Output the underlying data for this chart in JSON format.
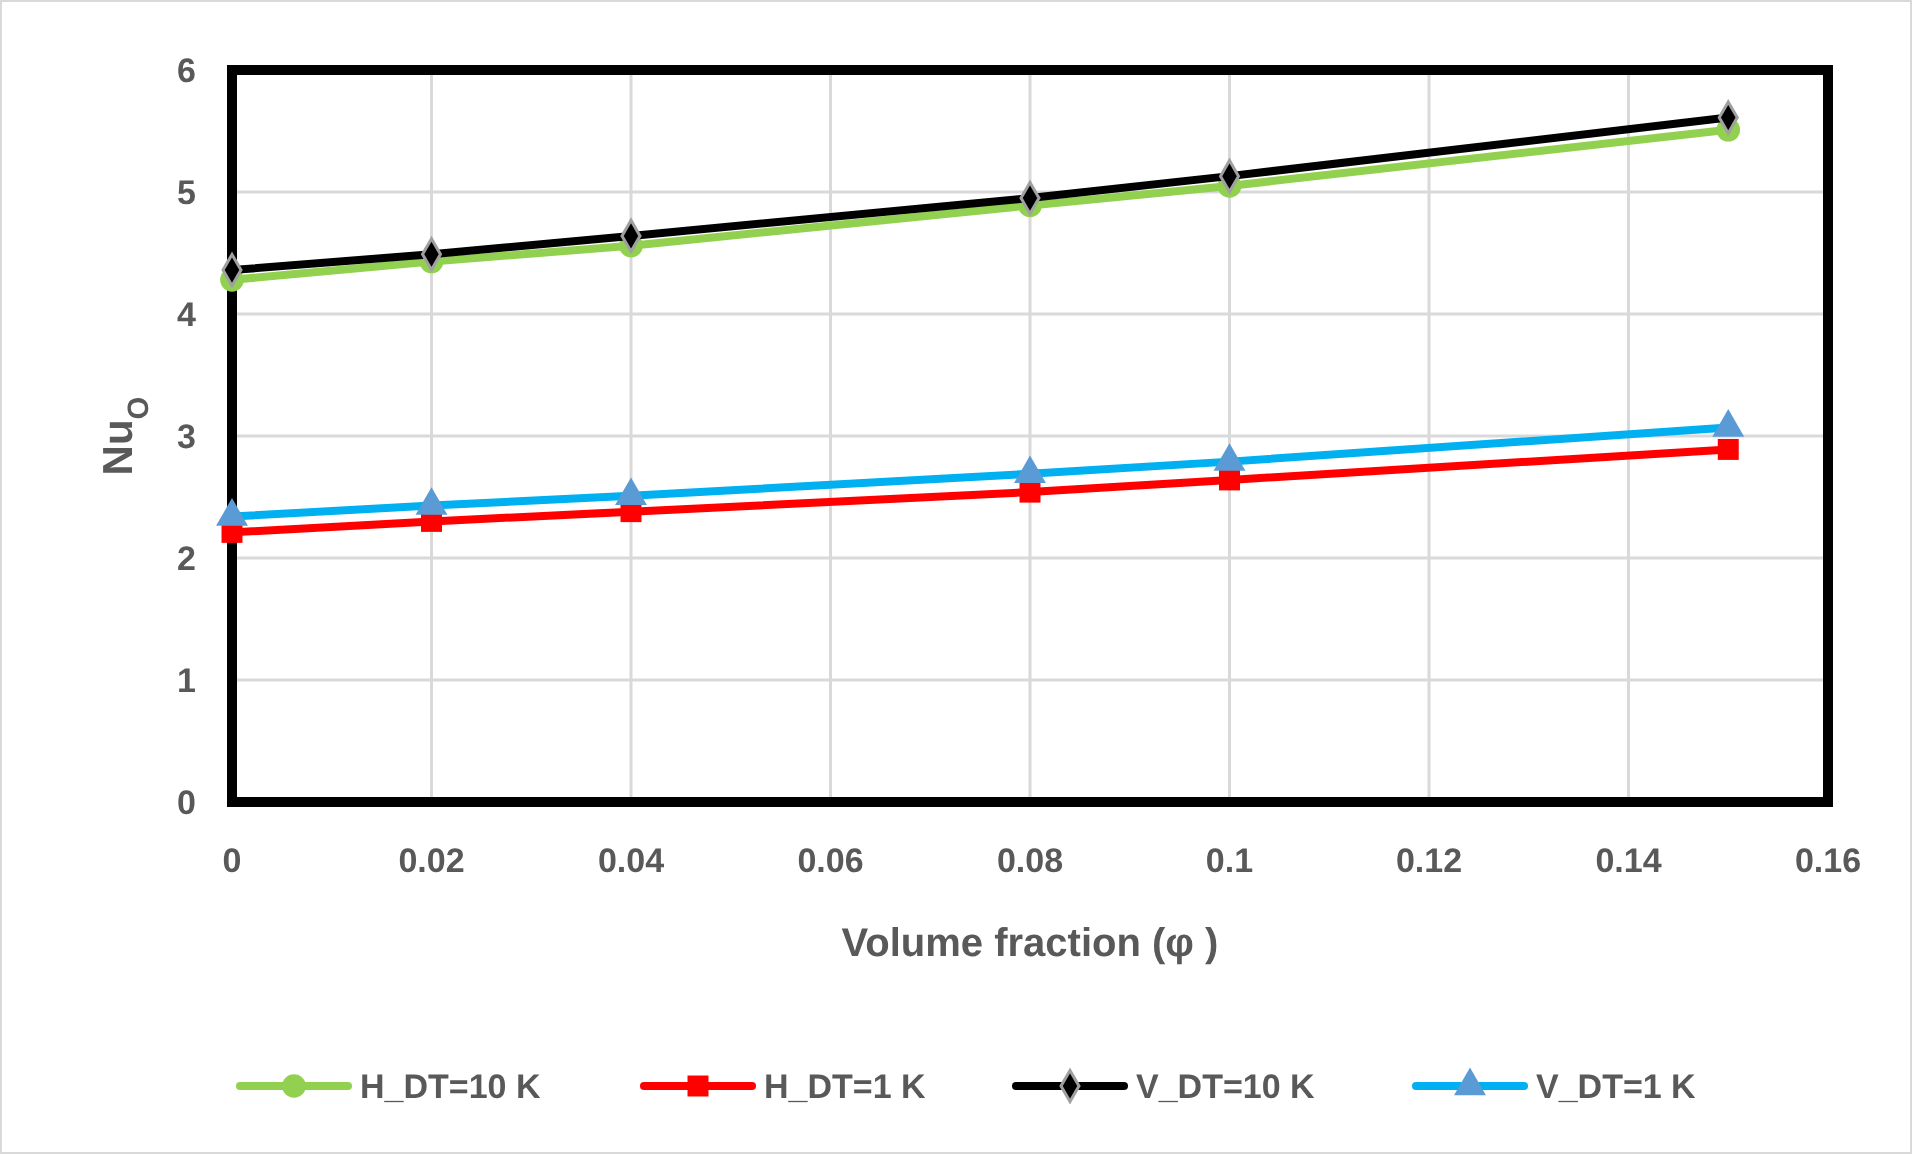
{
  "chart_data": {
    "type": "line",
    "xlabel": "Volume fraction (φ )",
    "ylabel": "Nu$_{O}$",
    "x": [
      0,
      0.02,
      0.04,
      0.08,
      0.1,
      0.15
    ],
    "xlim": [
      0,
      0.16
    ],
    "xticks": [
      0,
      0.02,
      0.04,
      0.06,
      0.08,
      0.1,
      0.12,
      0.14,
      0.16
    ],
    "ylim": [
      0,
      6
    ],
    "yticks": [
      0,
      1,
      2,
      3,
      4,
      5,
      6
    ],
    "grid": true,
    "legend": "bottom",
    "line_style": "solid",
    "series": [
      {
        "name": "H_DT=10 K",
        "color": "#92d050",
        "marker": "circle",
        "values": [
          4.28,
          4.43,
          4.56,
          4.89,
          5.05,
          5.51
        ]
      },
      {
        "name": "H_DT=1 K",
        "color": "#ff0000",
        "marker": "square",
        "values": [
          2.21,
          2.3,
          2.38,
          2.54,
          2.64,
          2.89
        ]
      },
      {
        "name": "V_DT=10 K",
        "color": "#000000",
        "marker": "diamond",
        "values": [
          4.36,
          4.49,
          4.64,
          4.95,
          5.13,
          5.61
        ]
      },
      {
        "name": "V_DT=1 K",
        "color": "#00b0f0",
        "marker": "triangle",
        "values": [
          2.34,
          2.43,
          2.51,
          2.69,
          2.79,
          3.07
        ]
      }
    ]
  }
}
